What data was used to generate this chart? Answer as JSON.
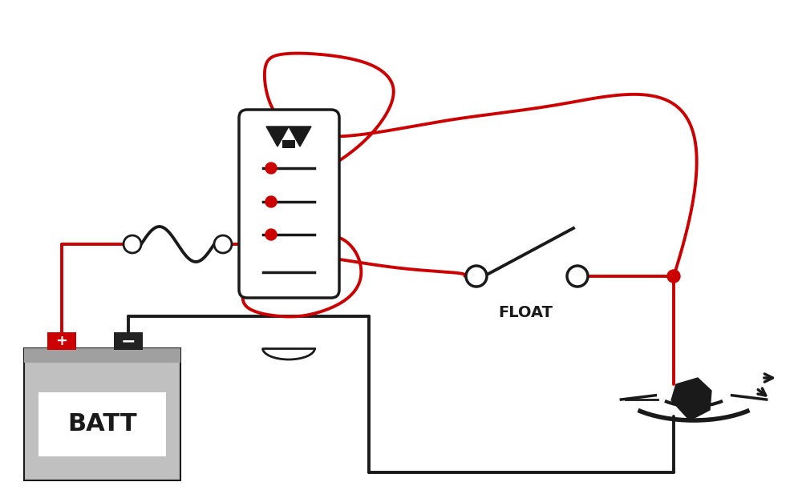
{
  "bg_color": "#ffffff",
  "red": "#cc0000",
  "black": "#1a1a1a",
  "gray_light": "#c0c0c0",
  "gray_mid": "#a0a0a0",
  "gray_dark": "#606060",
  "line_width": 2.8,
  "float_label": "FLOAT",
  "batt_label": "BATT",
  "figw": 10.0,
  "figh": 6.22,
  "dpi": 100
}
